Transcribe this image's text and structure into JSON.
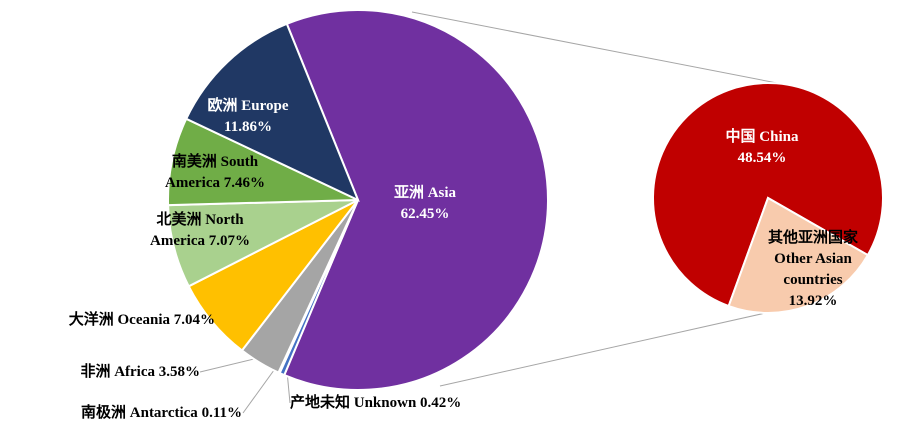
{
  "chart_data": [
    {
      "type": "pie",
      "categories": [
        "亚洲 Asia",
        "产地未知 Unknown",
        "南极洲 Antarctica",
        "非洲 Africa",
        "大洋洲 Oceania",
        "北美洲 North America",
        "南美洲 South America",
        "欧洲 Europe"
      ],
      "values": [
        62.45,
        0.42,
        0.11,
        3.58,
        7.04,
        7.07,
        7.46,
        11.86
      ],
      "value_labels": [
        "62.45%",
        "0.42%",
        "0.11%",
        "3.58%",
        "7.04%",
        "7.07%",
        "7.46%",
        "11.86%"
      ],
      "colors": [
        "#7030a0",
        "#4472c4",
        "#264478",
        "#a5a5a5",
        "#ffc000",
        "#a9d18e",
        "#70ad47",
        "#203864"
      ]
    },
    {
      "type": "pie",
      "categories": [
        "中国 China",
        "其他亚洲国家 Other Asian countries"
      ],
      "values": [
        48.54,
        13.92
      ],
      "value_labels": [
        "48.54%",
        "13.92%"
      ],
      "colors": [
        "#c00000",
        "#f8cbad"
      ]
    }
  ]
}
